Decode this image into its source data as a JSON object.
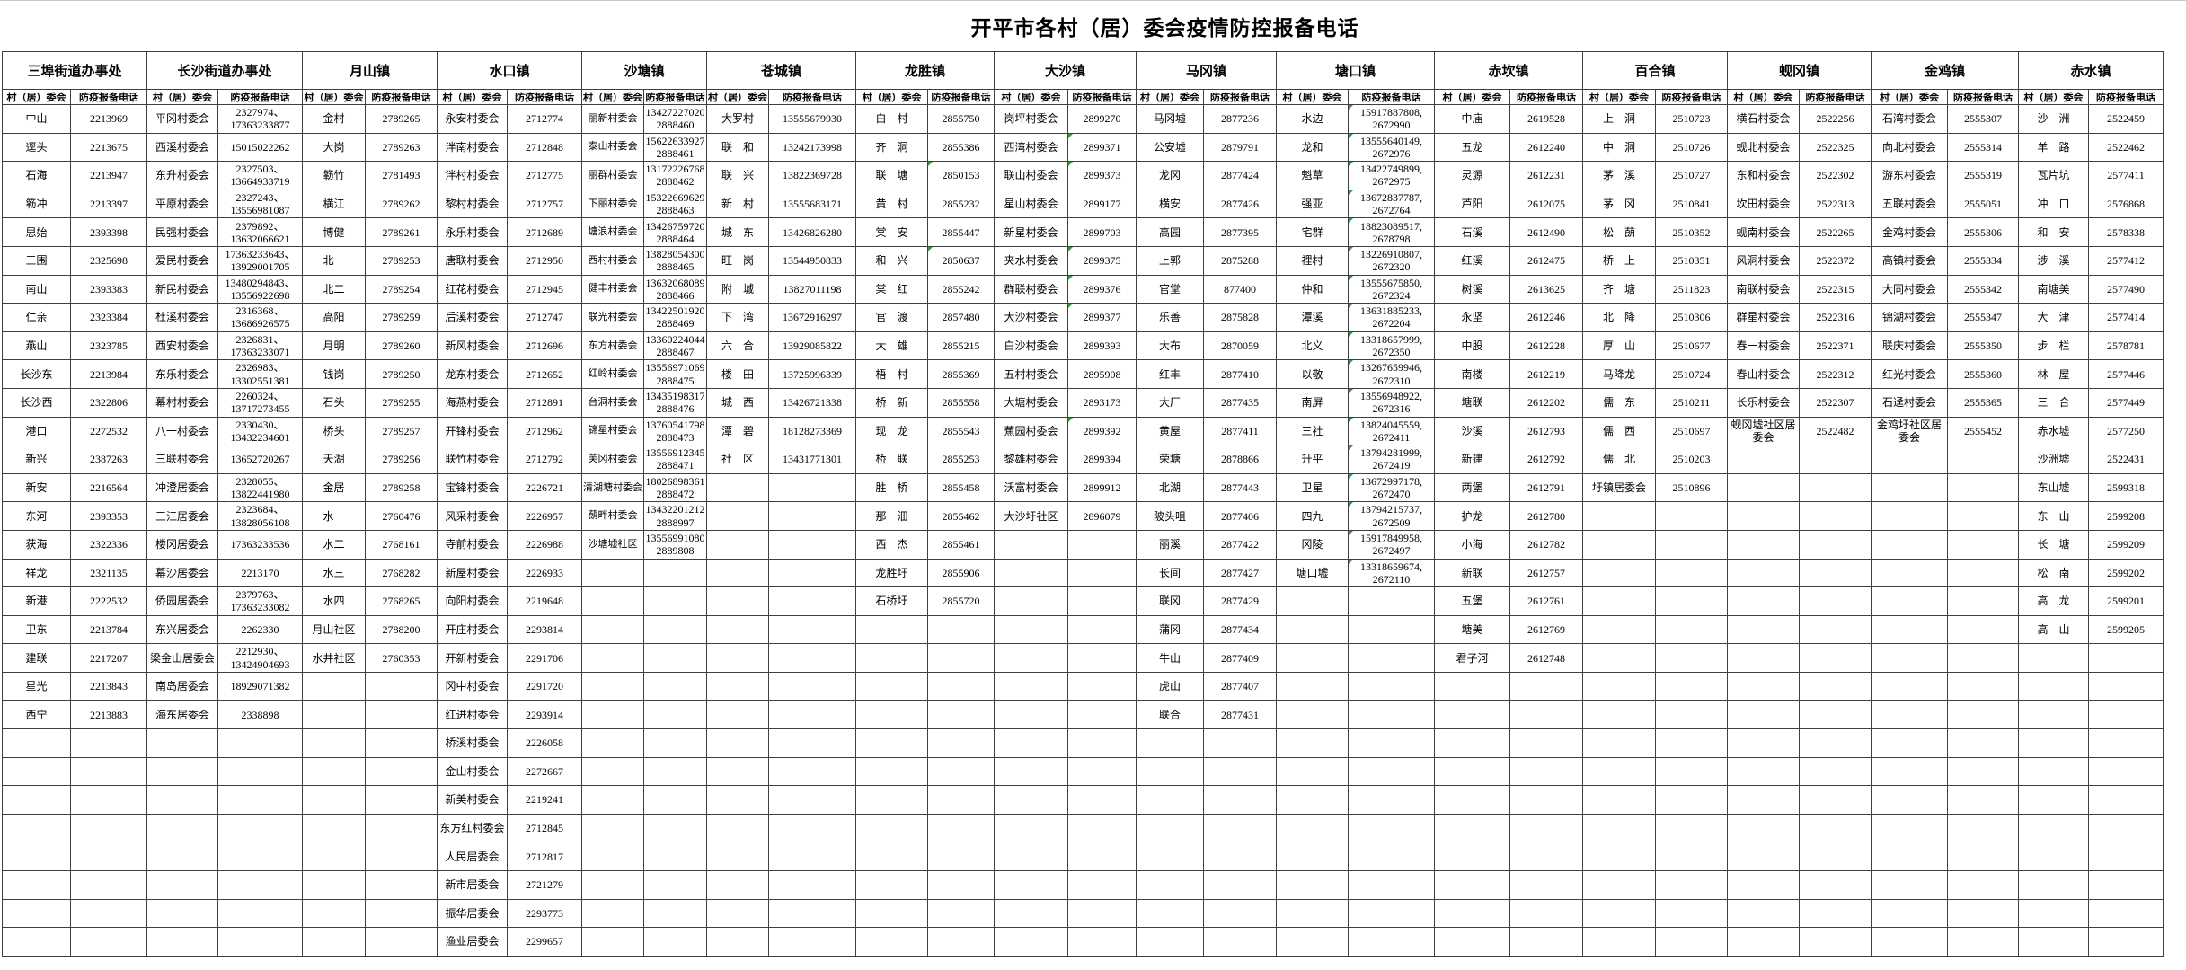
{
  "title": "开平市各村（居）委会疫情防控报备电话",
  "column_headers": {
    "village": "村（居）委会",
    "phone": "防疫报备电话"
  },
  "towns": [
    {
      "name": "三埠街道办事处",
      "rows": [
        [
          "中山",
          "2213969"
        ],
        [
          "逕头",
          "2213675"
        ],
        [
          "石海",
          "2213947"
        ],
        [
          "簕冲",
          "2213397"
        ],
        [
          "思始",
          "2393398"
        ],
        [
          "三围",
          "2325698"
        ],
        [
          "南山",
          "2393383"
        ],
        [
          "仁亲",
          "2323384"
        ],
        [
          "燕山",
          "2323785"
        ],
        [
          "长沙东",
          "2213984"
        ],
        [
          "长沙西",
          "2322806"
        ],
        [
          "港口",
          "2272532"
        ],
        [
          "新兴",
          "2387263"
        ],
        [
          "新安",
          "2216564"
        ],
        [
          "东河",
          "2393353"
        ],
        [
          "获海",
          "2322336"
        ],
        [
          "祥龙",
          "2321135"
        ],
        [
          "新港",
          "2222532"
        ],
        [
          "卫东",
          "2213784"
        ],
        [
          "建联",
          "2217207"
        ],
        [
          "星光",
          "2213843"
        ],
        [
          "西宁",
          "2213883"
        ]
      ]
    },
    {
      "name": "长沙街道办事处",
      "rows": [
        [
          "平冈村委会",
          [
            "2327974、",
            "17363233877"
          ]
        ],
        [
          "西溪村委会",
          "15015022262"
        ],
        [
          "东升村委会",
          [
            "2327503、",
            "13664933719"
          ]
        ],
        [
          "平原村委会",
          [
            "2327243、",
            "13556981087"
          ]
        ],
        [
          "民强村委会",
          [
            "2379892、",
            "13632066621"
          ]
        ],
        [
          "爱民村委会",
          [
            "17363233643、",
            "13929001705"
          ]
        ],
        [
          "新民村委会",
          [
            "13480294843、",
            "13556922698"
          ]
        ],
        [
          "杜溪村委会",
          [
            "2316368、",
            "13686926575"
          ]
        ],
        [
          "西安村委会",
          [
            "2326831、",
            "17363233071"
          ]
        ],
        [
          "东乐村委会",
          [
            "2326983、",
            "13302551381"
          ]
        ],
        [
          "幕村村委会",
          [
            "2260324、",
            "13717273455"
          ]
        ],
        [
          "八一村委会",
          [
            "2330430、",
            "13432234601"
          ]
        ],
        [
          "三联村委会",
          "13652720267"
        ],
        [
          "冲澄居委会",
          [
            "2328055、",
            "13822441980"
          ]
        ],
        [
          "三江居委会",
          [
            "2323684、",
            "13828056108"
          ]
        ],
        [
          "楼冈居委会",
          "17363233536"
        ],
        [
          "幕沙居委会",
          "2213170"
        ],
        [
          "侨园居委会",
          [
            "2379763、",
            "17363233082"
          ]
        ],
        [
          "东兴居委会",
          "2262330"
        ],
        [
          "梁金山居委会",
          [
            "2212930、",
            "13424904693"
          ]
        ],
        [
          "南岛居委会",
          "18929071382"
        ],
        [
          "海东居委会",
          "2338898"
        ]
      ]
    },
    {
      "name": "月山镇",
      "rows": [
        [
          "金村",
          "2789265"
        ],
        [
          "大岗",
          "2789263"
        ],
        [
          "簕竹",
          "2781493"
        ],
        [
          "横江",
          "2789262"
        ],
        [
          "博健",
          "2789261"
        ],
        [
          "北一",
          "2789253"
        ],
        [
          "北二",
          "2789254"
        ],
        [
          "高阳",
          "2789259"
        ],
        [
          "月明",
          "2789260"
        ],
        [
          "钱岗",
          "2789250"
        ],
        [
          "石头",
          "2789255"
        ],
        [
          "桥头",
          "2789257"
        ],
        [
          "天湖",
          "2789256"
        ],
        [
          "金居",
          "2789258"
        ],
        [
          "水一",
          "2760476"
        ],
        [
          "水二",
          "2768161"
        ],
        [
          "水三",
          "2768282"
        ],
        [
          "水四",
          "2768265"
        ],
        [
          "月山社区",
          "2788200"
        ],
        [
          "水井社区",
          "2760353"
        ]
      ]
    },
    {
      "name": "水口镇",
      "rows": [
        [
          "永安村委会",
          "2712774"
        ],
        [
          "泮南村委会",
          "2712848"
        ],
        [
          "泮村村委会",
          "2712775"
        ],
        [
          "黎村村委会",
          "2712757"
        ],
        [
          "永乐村委会",
          "2712689"
        ],
        [
          "唐联村委会",
          "2712950"
        ],
        [
          "红花村委会",
          "2712945"
        ],
        [
          "后溪村委会",
          "2712747"
        ],
        [
          "新风村委会",
          "2712696"
        ],
        [
          "龙东村委会",
          "2712652"
        ],
        [
          "海燕村委会",
          "2712891"
        ],
        [
          "开锋村委会",
          "2712962"
        ],
        [
          "联竹村委会",
          "2712792"
        ],
        [
          "宝锋村委会",
          "2226721"
        ],
        [
          "风采村委会",
          "2226957"
        ],
        [
          "寺前村委会",
          "2226988"
        ],
        [
          "新屋村委会",
          "2226933"
        ],
        [
          "向阳村委会",
          "2219648"
        ],
        [
          "开庄村委会",
          "2293814"
        ],
        [
          "开新村委会",
          "2291706"
        ],
        [
          "冈中村委会",
          "2291720"
        ],
        [
          "红进村委会",
          "2293914"
        ],
        [
          "桥溪村委会",
          "2226058"
        ],
        [
          "金山村委会",
          "2272667"
        ],
        [
          "新美村委会",
          "2219241"
        ],
        [
          "东方红村委会",
          "2712845"
        ],
        [
          "人民居委会",
          "2712817"
        ],
        [
          "新市居委会",
          "2721279"
        ],
        [
          "振华居委会",
          "2293773"
        ],
        [
          "渔业居委会",
          "2299657"
        ]
      ]
    },
    {
      "name": "沙塘镇",
      "rows": [
        [
          "丽新村委会",
          [
            "13427227020",
            "2888460"
          ]
        ],
        [
          "泰山村委会",
          [
            "15622633927",
            "2888461"
          ]
        ],
        [
          "丽群村委会",
          [
            "13172226768",
            "2888462"
          ]
        ],
        [
          "下丽村委会",
          [
            "15322669629",
            "2888463"
          ]
        ],
        [
          "塘浪村委会",
          [
            "13426759720",
            "2888464"
          ]
        ],
        [
          "西村村委会",
          [
            "13828054300",
            "2888465"
          ]
        ],
        [
          "健丰村委会",
          [
            "13632068089",
            "2888466"
          ]
        ],
        [
          "联光村委会",
          [
            "13422501920",
            "2888469"
          ]
        ],
        [
          "东方村委会",
          [
            "13360224044",
            "2888467"
          ]
        ],
        [
          "红岭村委会",
          [
            "13556971069",
            "2888475"
          ]
        ],
        [
          "台洞村委会",
          [
            "13435198317",
            "2888476"
          ]
        ],
        [
          "锦星村委会",
          [
            "13760541798",
            "2888473"
          ]
        ],
        [
          "芙冈村委会",
          [
            "13556912345",
            "2888471"
          ]
        ],
        [
          "清湖塘村委会",
          [
            "18026898361",
            "2888472"
          ]
        ],
        [
          "蓢畔村委会",
          [
            "13432201212",
            "2888997"
          ]
        ],
        [
          "沙塘墟社区",
          [
            "13556991080",
            "2889808"
          ]
        ]
      ]
    },
    {
      "name": "苍城镇",
      "rows": [
        [
          "大罗村",
          "13555679930"
        ],
        [
          "联　和",
          "13242173998"
        ],
        [
          "联　兴",
          "13822369728"
        ],
        [
          "新　村",
          "13555683171"
        ],
        [
          "城　东",
          "13426826280"
        ],
        [
          "旺　岗",
          "13544950833"
        ],
        [
          "附　城",
          "13827011198"
        ],
        [
          "下　湾",
          "13672916297"
        ],
        [
          "六　合",
          "13929085822"
        ],
        [
          "楼　田",
          "13725996339"
        ],
        [
          "城　西",
          "13426721338"
        ],
        [
          "潭　碧",
          "18128273369"
        ],
        [
          "社　区",
          "13431771301"
        ]
      ]
    },
    {
      "name": "龙胜镇",
      "rows": [
        [
          "白　村",
          "2855750"
        ],
        [
          "齐　洞",
          "2855386"
        ],
        [
          "联　塘",
          "2850153",
          1
        ],
        [
          "黄　村",
          "2855232"
        ],
        [
          "棠　安",
          "2855447"
        ],
        [
          "和　兴",
          "2850637",
          1
        ],
        [
          "棠　红",
          "2855242"
        ],
        [
          "官　渡",
          "2857480"
        ],
        [
          "大　雄",
          "2855215"
        ],
        [
          "梧　村",
          "2855369"
        ],
        [
          "桥　新",
          "2855558"
        ],
        [
          "现　龙",
          "2855543"
        ],
        [
          "桥　联",
          "2855253"
        ],
        [
          "胜　桥",
          "2855458"
        ],
        [
          "那　沺",
          "2855462"
        ],
        [
          "西　杰",
          "2855461"
        ],
        [
          "龙胜圩",
          "2855906"
        ],
        [
          "石桥圩",
          "2855720"
        ]
      ]
    },
    {
      "name": "大沙镇",
      "rows": [
        [
          "岗坪村委会",
          "2899270"
        ],
        [
          "西湾村委会",
          "2899371",
          1
        ],
        [
          "联山村委会",
          "2899373",
          1
        ],
        [
          "星山村委会",
          "2899177"
        ],
        [
          "新星村委会",
          "2899703"
        ],
        [
          "夹水村委会",
          "2899375",
          1
        ],
        [
          "群联村委会",
          "2899376",
          1
        ],
        [
          "大沙村委会",
          "2899377",
          1
        ],
        [
          "白沙村委会",
          "2899393"
        ],
        [
          "五村村委会",
          "2895908"
        ],
        [
          "大塘村委会",
          "2893173"
        ],
        [
          "蕉园村委会",
          "2899392",
          1
        ],
        [
          "黎雄村委会",
          "2899394"
        ],
        [
          "沃富村委会",
          "2899912"
        ],
        [
          "大沙圩社区",
          "2896079"
        ]
      ]
    },
    {
      "name": "马冈镇",
      "rows": [
        [
          "马冈墟",
          "2877236"
        ],
        [
          "公安墟",
          "2879791"
        ],
        [
          "龙冈",
          "2877424"
        ],
        [
          "横安",
          "2877426"
        ],
        [
          "高园",
          "2877395"
        ],
        [
          "上郭",
          "2875288"
        ],
        [
          "官堂",
          "877400"
        ],
        [
          "乐善",
          "2875828"
        ],
        [
          "大布",
          "2870059"
        ],
        [
          "红丰",
          "2877410"
        ],
        [
          "大厂",
          "2877435"
        ],
        [
          "黄屋",
          "2877411"
        ],
        [
          "荣塘",
          "2878866"
        ],
        [
          "北湖",
          "2877443"
        ],
        [
          "陂头咀",
          "2877406"
        ],
        [
          "丽溪",
          "2877422"
        ],
        [
          "长间",
          "2877427"
        ],
        [
          "联冈",
          "2877429"
        ],
        [
          "蒲冈",
          "2877434"
        ],
        [
          "牛山",
          "2877409"
        ],
        [
          "虎山",
          "2877407"
        ],
        [
          "联合",
          "2877431"
        ]
      ]
    },
    {
      "name": "塘口镇",
      "rows": [
        [
          "水边",
          [
            "15917887808,",
            "2672990"
          ],
          1
        ],
        [
          "龙和",
          [
            "13555640149,",
            "2672976"
          ],
          1
        ],
        [
          "魁草",
          [
            "13422749899,",
            "2672975"
          ],
          1
        ],
        [
          "强亚",
          [
            "13672837787,",
            "2672764"
          ],
          1
        ],
        [
          "宅群",
          [
            "18823089517,",
            "2678798"
          ],
          1
        ],
        [
          "裡村",
          [
            "13226910807,",
            "2672320"
          ],
          1
        ],
        [
          "仲和",
          [
            "13555675850,",
            "2672324"
          ],
          1
        ],
        [
          "潭溪",
          [
            "13631885233,",
            "2672204"
          ],
          1
        ],
        [
          "北义",
          [
            "13318657999,",
            "2672350"
          ],
          1
        ],
        [
          "以敬",
          [
            "13267659946,",
            "2672310"
          ],
          1
        ],
        [
          "南屏",
          [
            "13556948922,",
            "2672316"
          ],
          1
        ],
        [
          "三社",
          [
            "13824045559,",
            "2672411"
          ],
          1
        ],
        [
          "升平",
          [
            "13794281999,",
            "2672419"
          ],
          1
        ],
        [
          "卫星",
          [
            "13672997178,",
            "2672470"
          ],
          1
        ],
        [
          "四九",
          [
            "13794215737,",
            "2672509"
          ],
          1
        ],
        [
          "冈陵",
          [
            "15917849958,",
            "2672497"
          ],
          1
        ],
        [
          "塘口墟",
          [
            "13318659674,",
            "2672110"
          ],
          1
        ]
      ]
    },
    {
      "name": "赤坎镇",
      "rows": [
        [
          "中庙",
          "2619528"
        ],
        [
          "五龙",
          "2612240"
        ],
        [
          "灵源",
          "2612231"
        ],
        [
          "芦阳",
          "2612075"
        ],
        [
          "石溪",
          "2612490"
        ],
        [
          "红溪",
          "2612475"
        ],
        [
          "树溪",
          "2613625"
        ],
        [
          "永坚",
          "2612246"
        ],
        [
          "中股",
          "2612228"
        ],
        [
          "南楼",
          "2612219"
        ],
        [
          "塘联",
          "2612202"
        ],
        [
          "沙溪",
          "2612793"
        ],
        [
          "新建",
          "2612792"
        ],
        [
          "两堡",
          "2612791"
        ],
        [
          "护龙",
          "2612780"
        ],
        [
          "小海",
          "2612782"
        ],
        [
          "新联",
          "2612757"
        ],
        [
          "五堡",
          "2612761"
        ],
        [
          "塘美",
          "2612769"
        ],
        [
          "君子河",
          "2612748"
        ]
      ]
    },
    {
      "name": "百合镇",
      "rows": [
        [
          "上　洞",
          "2510723"
        ],
        [
          "中　洞",
          "2510726"
        ],
        [
          "茅　溪",
          "2510727"
        ],
        [
          "茅　冈",
          "2510841"
        ],
        [
          "松　蓢",
          "2510352"
        ],
        [
          "桥　上",
          "2510351"
        ],
        [
          "齐　塘",
          "2511823"
        ],
        [
          "北　降",
          "2510306"
        ],
        [
          "厚　山",
          "2510677"
        ],
        [
          "马降龙",
          "2510724"
        ],
        [
          "儒　东",
          "2510211"
        ],
        [
          "儒　西",
          "2510697"
        ],
        [
          "儒　北",
          "2510203"
        ],
        [
          "圩镇居委会",
          "2510896"
        ]
      ]
    },
    {
      "name": "蚬冈镇",
      "rows": [
        [
          "横石村委会",
          "2522256"
        ],
        [
          "蚬北村委会",
          "2522325"
        ],
        [
          "东和村委会",
          "2522302"
        ],
        [
          "坎田村委会",
          "2522313"
        ],
        [
          "蚬南村委会",
          "2522265"
        ],
        [
          "风洞村委会",
          "2522372"
        ],
        [
          "南联村委会",
          "2522315"
        ],
        [
          "群星村委会",
          "2522316"
        ],
        [
          "春一村委会",
          "2522371"
        ],
        [
          "春山村委会",
          "2522312"
        ],
        [
          "长乐村委会",
          "2522307"
        ],
        [
          "蚬冈墟社区居委会",
          "2522482"
        ]
      ]
    },
    {
      "name": "金鸡镇",
      "rows": [
        [
          "石湾村委会",
          "2555307"
        ],
        [
          "向北村委会",
          "2555314"
        ],
        [
          "游东村委会",
          "2555319"
        ],
        [
          "五联村委会",
          "2555051"
        ],
        [
          "金鸡村委会",
          "2555306"
        ],
        [
          "高镇村委会",
          "2555334"
        ],
        [
          "大同村委会",
          "2555342"
        ],
        [
          "锦湖村委会",
          "2555347"
        ],
        [
          "联庆村委会",
          "2555350"
        ],
        [
          "红光村委会",
          "2555360"
        ],
        [
          "石迳村委会",
          "2555365"
        ],
        [
          "金鸡圩社区居委会",
          "2555452"
        ]
      ]
    },
    {
      "name": "赤水镇",
      "rows": [
        [
          "沙　洲",
          "2522459"
        ],
        [
          "羊　路",
          "2522462"
        ],
        [
          "瓦片坑",
          "2577411"
        ],
        [
          "冲　口",
          "2576868"
        ],
        [
          "和　安",
          "2578338"
        ],
        [
          "涉　溪",
          "2577412"
        ],
        [
          "南塘美",
          "2577490"
        ],
        [
          "大　津",
          "2577414"
        ],
        [
          "步　栏",
          "2578781"
        ],
        [
          "林　屋",
          "2577446"
        ],
        [
          "三　合",
          "2577449"
        ],
        [
          "赤水墟",
          "2577250"
        ],
        [
          "沙洲墟",
          "2522431"
        ],
        [
          "东山墟",
          "2599318"
        ],
        [
          "东　山",
          "2599208"
        ],
        [
          "长　塘",
          "2599209"
        ],
        [
          "松　南",
          "2599202"
        ],
        [
          "高　龙",
          "2599201"
        ],
        [
          "高　山",
          "2599205"
        ]
      ]
    }
  ]
}
